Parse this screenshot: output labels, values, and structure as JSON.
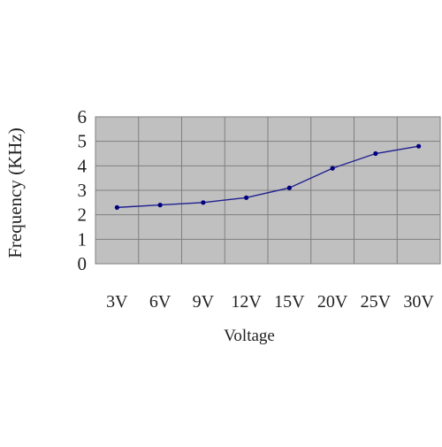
{
  "chart_data": {
    "type": "line",
    "title": "",
    "xlabel": "Voltage",
    "ylabel": "Frequency (KHz)",
    "categories": [
      "3V",
      "6V",
      "9V",
      "12V",
      "15V",
      "20V",
      "25V",
      "30V"
    ],
    "series": [
      {
        "values": [
          2.3,
          2.4,
          2.5,
          2.7,
          3.1,
          3.9,
          4.5,
          4.8
        ]
      }
    ],
    "ylim": [
      0,
      6
    ],
    "yticks": [
      "0",
      "1",
      "2",
      "3",
      "4",
      "5",
      "6"
    ],
    "grid": true,
    "legend": "none",
    "colors": {
      "plot_background": "#c0c0c0",
      "grid": "#7f7f7f",
      "line": "#1f1f8f",
      "marker": "#000080"
    }
  }
}
